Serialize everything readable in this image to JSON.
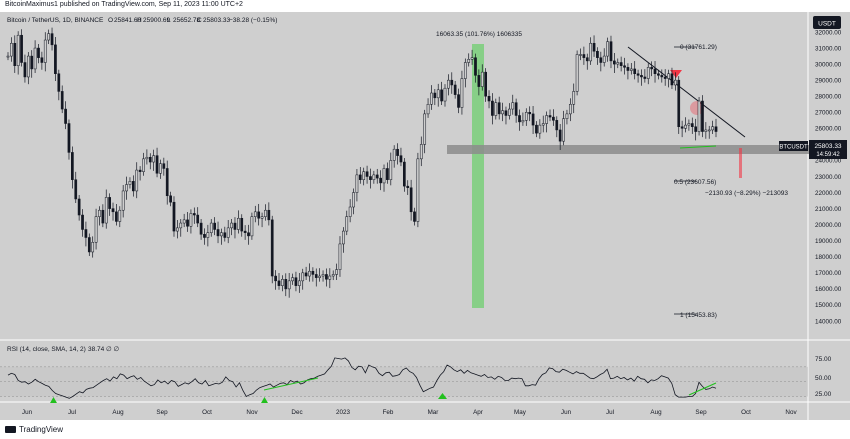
{
  "header": {
    "publish_line": "BitcoinMaximus1 published on TradingView.com, Sep 11, 2023 11:00 UTC+2"
  },
  "footer": {
    "brand": "TradingView"
  },
  "symbol_line": {
    "name": "Bitcoin / TetherUS, 1D, BINANCE",
    "o_label": "O",
    "o": "25841.60",
    "h_label": "H",
    "h": "25900.69",
    "l_label": "L",
    "l": "25652.78",
    "c_label": "C",
    "c": "25803.33",
    "change": "−38.28 (−0.15%)"
  },
  "currency_button": "USDT",
  "price_tag": {
    "ticker": "BTCUSDT",
    "price": "25803.33",
    "countdown": "14:59:42"
  },
  "annotations": {
    "range_label": "16063.35 (101.76%) 1606335",
    "fib_0": "0 (31761.29)",
    "fib_05": "0.5 (23607.56)",
    "fib_1": "1 (15453.83)",
    "drop_label": "−2130.93 (−8.29%) −213093"
  },
  "rsi": {
    "legend_name": "RSI (14, close, SMA, 14, 2)",
    "legend_value": "38.74",
    "legend_extra": "∅ ∅",
    "levels": [
      "75.00",
      "50.00",
      "25.00"
    ]
  },
  "colors": {
    "background": "#cfcfcf",
    "candle": "#131722",
    "fib_line": "#131722",
    "support_band": "#8c8c8c",
    "green_band": "#6fcf6f",
    "red_marker": "#f23645",
    "rsi_line": "#131722",
    "rsi_green": "#22c01e",
    "price_tag": "#131722"
  },
  "chart_data": {
    "type": "line",
    "title": "Bitcoin / TetherUS, 1D, BINANCE",
    "x_tick_labels": [
      "Jun",
      "Jul",
      "Aug",
      "Sep",
      "Oct",
      "Nov",
      "Dec",
      "2023",
      "Feb",
      "Mar",
      "Apr",
      "May",
      "Jun",
      "Jul",
      "Aug",
      "Sep",
      "Oct",
      "Nov"
    ],
    "y_tick_labels": [
      "32000.00",
      "31000.00",
      "30000.00",
      "29000.00",
      "28000.00",
      "27000.00",
      "26000.00",
      "25000.00",
      "24000.00",
      "23000.00",
      "22000.00",
      "21000.00",
      "20000.00",
      "19000.00",
      "18000.00",
      "17000.00",
      "16000.00",
      "15000.00",
      "14000.00"
    ],
    "ylim": [
      13700,
      32700
    ],
    "series": [
      {
        "values": [
          30500,
          31300,
          29900,
          31800,
          30100,
          29200,
          30500,
          29700,
          31000,
          30400,
          30100,
          31500,
          31900,
          31200,
          29400,
          28300,
          27200,
          26300,
          24500,
          22800,
          21600,
          20600,
          19700,
          19200,
          18300,
          18900,
          20500,
          20900,
          20100,
          21700,
          21000,
          20800,
          20200,
          20900,
          22100,
          22500,
          22700,
          22100,
          23400,
          23300,
          24100,
          24200,
          23900,
          24300,
          23200,
          23800,
          23500,
          21800,
          21400,
          19600,
          19800,
          20100,
          20300,
          19900,
          20700,
          20600,
          20100,
          19400,
          19200,
          19500,
          20100,
          19700,
          19300,
          19500,
          19200,
          19800,
          20100,
          19700,
          20400,
          19600,
          19500,
          19300,
          20500,
          20800,
          20400,
          20500,
          20900,
          20300,
          16800,
          16500,
          16200,
          16600,
          16000,
          16500,
          16700,
          16200,
          16500,
          17000,
          16800,
          17100,
          16900,
          16700,
          16800,
          16900,
          16600,
          16800,
          16900,
          17200,
          18800,
          19600,
          20500,
          21100,
          22000,
          23100,
          22800,
          23300,
          23000,
          22800,
          23100,
          22900,
          22600,
          23500,
          22800,
          24000,
          24700,
          24300,
          23900,
          22400,
          22300,
          20800,
          20200,
          24100,
          25000,
          26900,
          27500,
          28200,
          27900,
          28400,
          27700,
          28500,
          29000,
          28700,
          28100,
          27300,
          29100,
          30100,
          30300,
          30400,
          29300,
          28600,
          29500,
          28000,
          27700,
          26800,
          27600,
          26900,
          27100,
          26800,
          27200,
          27600,
          26800,
          26400,
          26500,
          27000,
          26900,
          26200,
          25700,
          26200,
          26300,
          26800,
          26700,
          26500,
          25900,
          25200,
          26600,
          26900,
          27500,
          28300,
          30600,
          30600,
          30400,
          30200,
          31300,
          30800,
          30400,
          30100,
          30500,
          31400,
          30200,
          30000,
          30100,
          29900,
          29800,
          29600,
          29700,
          29400,
          29300,
          29200,
          29100,
          29800,
          29700,
          29400,
          29300,
          29200,
          29100,
          29400,
          28700,
          29000,
          26100,
          26000,
          26200,
          26300,
          26100,
          25800,
          27700,
          25800,
          25900,
          25900,
          26100,
          25800
        ]
      }
    ],
    "rsi_series": {
      "name": "RSI (14, close, SMA, 14, 2)",
      "ylim": [
        14,
        100
      ],
      "values": [
        61,
        64,
        62,
        52,
        49,
        50,
        46,
        49,
        54,
        50,
        47,
        44,
        42,
        35,
        30,
        28,
        26,
        24,
        22,
        25,
        29,
        33,
        31,
        37,
        39,
        40,
        44,
        48,
        52,
        55,
        51,
        58,
        55,
        63,
        61,
        55,
        58,
        60,
        54,
        57,
        51,
        47,
        43,
        45,
        53,
        48,
        51,
        46,
        52,
        50,
        42,
        45,
        48,
        46,
        50,
        55,
        48,
        46,
        52,
        43,
        45,
        47,
        46,
        49,
        58,
        52,
        50,
        41,
        48,
        35,
        25,
        28,
        30,
        36,
        40,
        42,
        44,
        46,
        41,
        44,
        47,
        48,
        45,
        52,
        49,
        51,
        46,
        48,
        53,
        55,
        56,
        59,
        61,
        63,
        70,
        76,
        90,
        89,
        88,
        90,
        85,
        74,
        70,
        76,
        75,
        65,
        78,
        75,
        73,
        64,
        60,
        65,
        66,
        59,
        60,
        62,
        70,
        73,
        67,
        64,
        57,
        44,
        33,
        36,
        39,
        41,
        52,
        61,
        67,
        78,
        75,
        70,
        67,
        70,
        64,
        69,
        65,
        63,
        61,
        59,
        62,
        57,
        58,
        54,
        59,
        57,
        52,
        52,
        56,
        55,
        56,
        55,
        43,
        43,
        45,
        44,
        55,
        62,
        65,
        73,
        72,
        67,
        66,
        71,
        69,
        66,
        63,
        67,
        64,
        64,
        60,
        56,
        55,
        58,
        62,
        65,
        71,
        55,
        56,
        59,
        55,
        57,
        53,
        56,
        51,
        59,
        55,
        54,
        48,
        53,
        52,
        55,
        60,
        58,
        56,
        47,
        28,
        24,
        24,
        24,
        25,
        25,
        30,
        49,
        42,
        37,
        38,
        41,
        39
      ]
    },
    "fib_levels": [
      31761.29,
      23607.56,
      15453.83
    ],
    "current_price": 25803.33,
    "grid": false,
    "legend": "top-left"
  }
}
